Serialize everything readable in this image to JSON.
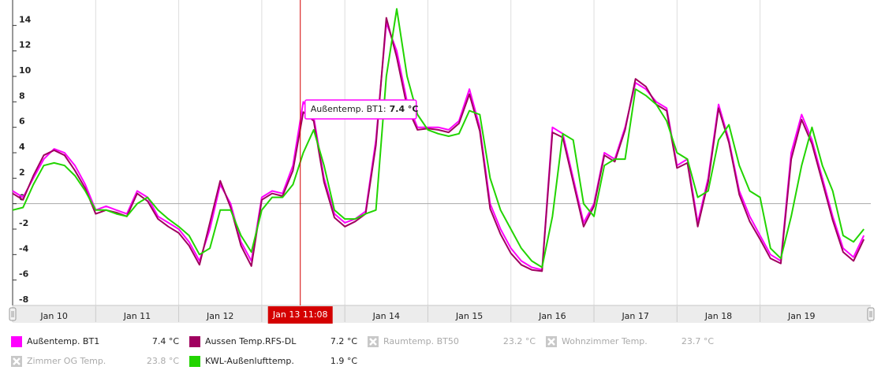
{
  "chart_data": {
    "type": "line",
    "x": [
      "Jan 10 00:00",
      "Jan 10 03:00",
      "Jan 10 06:00",
      "Jan 10 09:00",
      "Jan 10 12:00",
      "Jan 10 15:00",
      "Jan 10 18:00",
      "Jan 10 21:00",
      "Jan 11 00:00",
      "Jan 11 03:00",
      "Jan 11 06:00",
      "Jan 11 09:00",
      "Jan 11 12:00",
      "Jan 11 15:00",
      "Jan 11 18:00",
      "Jan 11 21:00",
      "Jan 12 00:00",
      "Jan 12 03:00",
      "Jan 12 06:00",
      "Jan 12 09:00",
      "Jan 12 12:00",
      "Jan 12 15:00",
      "Jan 12 18:00",
      "Jan 12 21:00",
      "Jan 13 00:00",
      "Jan 13 03:00",
      "Jan 13 06:00",
      "Jan 13 09:00",
      "Jan 13 12:00",
      "Jan 13 15:00",
      "Jan 13 18:00",
      "Jan 13 21:00",
      "Jan 14 00:00",
      "Jan 14 03:00",
      "Jan 14 06:00",
      "Jan 14 09:00",
      "Jan 14 12:00",
      "Jan 14 15:00",
      "Jan 14 18:00",
      "Jan 14 21:00",
      "Jan 15 00:00",
      "Jan 15 03:00",
      "Jan 15 06:00",
      "Jan 15 09:00",
      "Jan 15 12:00",
      "Jan 15 15:00",
      "Jan 15 18:00",
      "Jan 15 21:00",
      "Jan 16 00:00",
      "Jan 16 03:00",
      "Jan 16 06:00",
      "Jan 16 09:00",
      "Jan 16 12:00",
      "Jan 16 15:00",
      "Jan 16 18:00",
      "Jan 16 21:00",
      "Jan 17 00:00",
      "Jan 17 03:00",
      "Jan 17 06:00",
      "Jan 17 09:00",
      "Jan 17 12:00",
      "Jan 17 15:00",
      "Jan 17 18:00",
      "Jan 17 21:00",
      "Jan 18 00:00",
      "Jan 18 03:00",
      "Jan 18 06:00",
      "Jan 18 09:00",
      "Jan 18 12:00",
      "Jan 18 15:00",
      "Jan 18 18:00",
      "Jan 18 21:00",
      "Jan 19 00:00",
      "Jan 19 03:00",
      "Jan 19 06:00",
      "Jan 19 09:00",
      "Jan 19 12:00",
      "Jan 19 15:00",
      "Jan 19 18:00",
      "Jan 19 21:00",
      "Jan 20 00:00",
      "Jan 20 03:00",
      "Jan 20 06:00"
    ],
    "series": [
      {
        "name": "Außentemp. BT1",
        "color": "#ff00ff",
        "visible": true,
        "legend_value": "7.4 °C",
        "values": [
          1,
          0.5,
          2,
          3.5,
          4.3,
          4,
          3,
          1.5,
          -0.5,
          -0.2,
          -0.5,
          -0.8,
          1,
          0.5,
          -1,
          -1.5,
          -2,
          -3,
          -4.5,
          -2,
          1.5,
          0,
          -3,
          -4.5,
          0.5,
          1,
          0.8,
          3,
          8,
          6.8,
          2,
          -0.8,
          -1.5,
          -1.2,
          -0.6,
          5,
          14.2,
          12,
          8,
          6,
          6,
          6,
          5.8,
          6.5,
          9,
          6,
          0,
          -2,
          -3.5,
          -4.5,
          -5,
          -5.2,
          6,
          5.5,
          2,
          -1.5,
          0,
          4,
          3.5,
          6,
          9.5,
          9,
          8,
          7.5,
          3,
          3.5,
          -1.5,
          2,
          7.8,
          5,
          1,
          -1,
          -2.5,
          -4,
          -4.5,
          4,
          7,
          5,
          2,
          -1,
          -3.5,
          -4.2,
          -2.5
        ]
      },
      {
        "name": "Aussen Temp.RFS-DL",
        "color": "#a0005f",
        "visible": true,
        "legend_value": "7.2 °C",
        "values": [
          0.8,
          0.3,
          2.2,
          3.8,
          4.2,
          3.8,
          2.6,
          1.2,
          -0.8,
          -0.5,
          -0.7,
          -1,
          0.8,
          0.2,
          -1.2,
          -1.8,
          -2.3,
          -3.3,
          -4.8,
          -1.5,
          1.8,
          -0.3,
          -3.3,
          -4.9,
          0.3,
          0.8,
          0.6,
          2.6,
          7.2,
          6.5,
          1.7,
          -1.1,
          -1.8,
          -1.4,
          -0.8,
          4.6,
          14.6,
          11.5,
          7.6,
          5.8,
          5.9,
          5.8,
          5.6,
          6.3,
          8.6,
          5.7,
          -0.4,
          -2.4,
          -3.9,
          -4.8,
          -5.2,
          -5.3,
          5.6,
          5.2,
          1.7,
          -1.8,
          -0.2,
          3.8,
          3.3,
          5.8,
          9.8,
          9.2,
          7.8,
          7.3,
          2.8,
          3.2,
          -1.8,
          1.7,
          7.5,
          4.8,
          0.7,
          -1.4,
          -2.8,
          -4.3,
          -4.7,
          3.5,
          6.6,
          4.7,
          1.7,
          -1.3,
          -3.8,
          -4.5,
          -2.8
        ]
      },
      {
        "name": "Raumtemp. BT50",
        "visible": false,
        "legend_value": "23.2 °C"
      },
      {
        "name": "Wohnzimmer Temp.",
        "visible": false,
        "legend_value": "23.7 °C"
      },
      {
        "name": "Zimmer OG Temp.",
        "visible": false,
        "legend_value": "23.8 °C"
      },
      {
        "name": "KWL-Außenlufttemp.",
        "color": "#22d400",
        "visible": true,
        "legend_value": "1.9 °C",
        "values": [
          -0.5,
          -0.3,
          1.5,
          3,
          3.2,
          3,
          2.2,
          1,
          -0.5,
          -0.5,
          -0.8,
          -1,
          0,
          0.5,
          -0.5,
          -1.2,
          -1.8,
          -2.5,
          -4,
          -3.5,
          -0.5,
          -0.5,
          -2.5,
          -3.8,
          -0.5,
          0.5,
          0.5,
          1.5,
          4,
          5.8,
          3,
          -0.5,
          -1.2,
          -1.2,
          -0.8,
          -0.5,
          10,
          15.3,
          10,
          7,
          5.8,
          5.5,
          5.3,
          5.5,
          7.3,
          7,
          2,
          -0.5,
          -2,
          -3.5,
          -4.5,
          -5,
          -1,
          5.5,
          5,
          0,
          -1,
          3,
          3.5,
          3.5,
          9,
          8.5,
          7.8,
          6.5,
          4,
          3.5,
          0.5,
          1,
          5,
          6.2,
          3,
          1,
          0.5,
          -3.5,
          -4.3,
          -1,
          3,
          6,
          3,
          1,
          -2.5,
          -3,
          -2
        ]
      }
    ],
    "xlim": [
      "Jan 10 00:00",
      "Jan 20 08:00"
    ],
    "xticks": [
      {
        "value": "Jan 10 00:00",
        "label": "Jan 10"
      },
      {
        "value": "Jan 11 00:00",
        "label": "Jan 11"
      },
      {
        "value": "Jan 12 00:00",
        "label": "Jan 12"
      },
      {
        "value": "Jan 13 00:00",
        "label": "Jan 13"
      },
      {
        "value": "Jan 14 00:00",
        "label": "Jan 14"
      },
      {
        "value": "Jan 15 00:00",
        "label": "Jan 15"
      },
      {
        "value": "Jan 16 00:00",
        "label": "Jan 16"
      },
      {
        "value": "Jan 17 00:00",
        "label": "Jan 17"
      },
      {
        "value": "Jan 18 00:00",
        "label": "Jan 18"
      },
      {
        "value": "Jan 19 00:00",
        "label": "Jan 19"
      }
    ],
    "ylim": [
      -8,
      16
    ],
    "yticks": [
      -8,
      -6,
      -4,
      -2,
      0,
      2,
      4,
      6,
      8,
      10,
      12,
      14
    ],
    "grid": true,
    "crosshair": {
      "x": "Jan 13 11:08",
      "color": "#d40000"
    },
    "tooltip": {
      "label": "Außentemp. BT1:",
      "value": "7.4 °C",
      "color": "#ff00ff"
    }
  }
}
